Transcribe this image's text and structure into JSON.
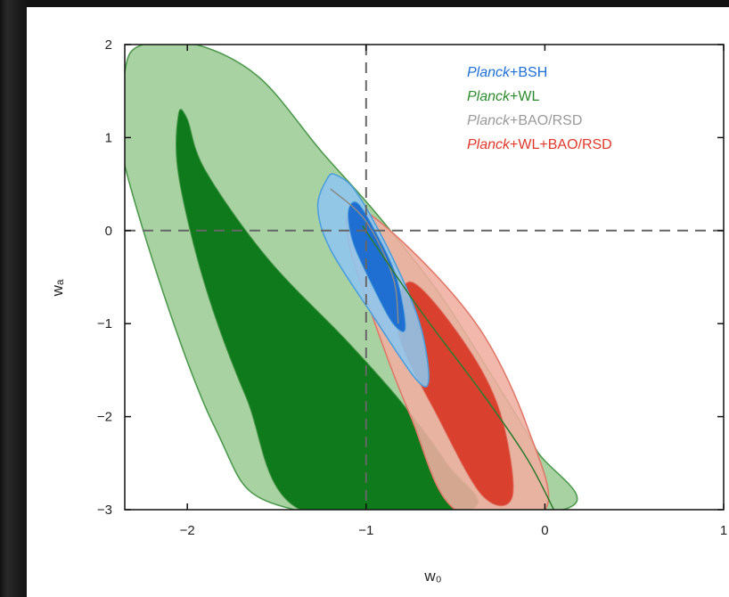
{
  "chart_data": {
    "type": "contour",
    "xlabel": "w₀",
    "ylabel": "wₐ",
    "xlim": [
      -2.35,
      1
    ],
    "ylim": [
      -3,
      2
    ],
    "xticks": [
      {
        "value": -2,
        "label": "−2"
      },
      {
        "value": -1,
        "label": "−1"
      },
      {
        "value": 0,
        "label": "0"
      },
      {
        "value": 1,
        "label": "1"
      }
    ],
    "yticks": [
      {
        "value": 2,
        "label": "2"
      },
      {
        "value": 1,
        "label": "1"
      },
      {
        "value": 0,
        "label": "0"
      },
      {
        "value": -1,
        "label": "−1"
      },
      {
        "value": -2,
        "label": "−2"
      },
      {
        "value": -3,
        "label": "−3"
      }
    ],
    "reference_lines": {
      "x": -1,
      "y": 0
    },
    "legend": {
      "placement": "top-right",
      "entries": [
        {
          "prefix": "Planck",
          "suffix": "+BSH",
          "color": "#1f6fd6"
        },
        {
          "prefix": "Planck",
          "suffix": "+WL",
          "color": "#2e8b2e"
        },
        {
          "prefix": "Planck",
          "suffix": "+BAO/RSD",
          "color": "#9a9a9a"
        },
        {
          "prefix": "Planck",
          "suffix": "+WL+BAO/RSD",
          "color": "#e0382b"
        }
      ]
    },
    "series": [
      {
        "name": "Planck+WL",
        "outer_color": "#9dcc96",
        "inner_color": "#0f7a1c",
        "edge_color": "#4e9a4e",
        "outer": [
          [
            -2.35,
            1.7
          ],
          [
            -2.25,
            2.0
          ],
          [
            -1.95,
            2.0
          ],
          [
            -1.6,
            1.65
          ],
          [
            -1.25,
            0.85
          ],
          [
            -0.95,
            0.2
          ],
          [
            -0.6,
            -0.65
          ],
          [
            -0.3,
            -1.55
          ],
          [
            -0.05,
            -2.35
          ],
          [
            0.1,
            -3.0
          ],
          [
            -1.4,
            -3.0
          ],
          [
            -1.85,
            -2.1
          ],
          [
            -2.35,
            0.7
          ]
        ],
        "inner": [
          [
            -2.05,
            1.25
          ],
          [
            -2.0,
            1.2
          ],
          [
            -1.9,
            0.65
          ],
          [
            -1.55,
            -0.3
          ],
          [
            -1.1,
            -1.2
          ],
          [
            -0.8,
            -1.85
          ],
          [
            -0.55,
            -2.5
          ],
          [
            -0.42,
            -3.0
          ],
          [
            -1.37,
            -3.0
          ],
          [
            -1.67,
            -1.8
          ],
          [
            -1.9,
            -0.6
          ],
          [
            -2.05,
            0.6
          ]
        ]
      },
      {
        "name": "Planck+WL+BAO/RSD",
        "outer_color": "#f0aea0",
        "inner_color": "#d9412e",
        "edge_color": "#e07a6a",
        "outer": [
          [
            -1.05,
            0.25
          ],
          [
            -0.7,
            -0.3
          ],
          [
            -0.35,
            -1.1
          ],
          [
            -0.1,
            -2.1
          ],
          [
            0.0,
            -3.0
          ],
          [
            -0.5,
            -3.0
          ],
          [
            -0.75,
            -2.0
          ],
          [
            -0.95,
            -1.0
          ],
          [
            -1.1,
            -0.1
          ]
        ],
        "inner": [
          [
            -0.75,
            -0.55
          ],
          [
            -0.45,
            -1.2
          ],
          [
            -0.25,
            -1.95
          ],
          [
            -0.18,
            -2.85
          ],
          [
            -0.35,
            -2.85
          ],
          [
            -0.6,
            -2.0
          ],
          [
            -0.82,
            -1.1
          ]
        ]
      },
      {
        "name": "Planck+BSH",
        "outer_color": "#8ec6ee",
        "inner_color": "#1e6fd1",
        "edge_color": "#4f9fdc",
        "outer": [
          [
            -1.17,
            0.6
          ],
          [
            -1.05,
            0.4
          ],
          [
            -0.85,
            -0.3
          ],
          [
            -0.7,
            -1.0
          ],
          [
            -0.65,
            -1.6
          ],
          [
            -0.72,
            -1.6
          ],
          [
            -0.95,
            -0.95
          ],
          [
            -1.2,
            -0.2
          ],
          [
            -1.27,
            0.25
          ],
          [
            -1.22,
            0.55
          ]
        ],
        "inner": [
          [
            -1.05,
            0.3
          ],
          [
            -0.95,
            0.0
          ],
          [
            -0.83,
            -0.5
          ],
          [
            -0.78,
            -1.05
          ],
          [
            -0.85,
            -1.0
          ],
          [
            -0.95,
            -0.65
          ],
          [
            -1.07,
            -0.15
          ],
          [
            -1.1,
            0.2
          ]
        ]
      }
    ],
    "guide_lines": [
      {
        "name": "Planck+BAO/RSD",
        "color": "#8a8a8a",
        "points": [
          [
            -1.2,
            0.45
          ],
          [
            -1.0,
            0.1
          ],
          [
            -0.85,
            -0.5
          ],
          [
            -0.82,
            -1.0
          ]
        ]
      },
      {
        "name": "Planck+WL",
        "color": "#2e7a2e",
        "points": [
          [
            -1.02,
            0.05
          ],
          [
            -0.7,
            -0.85
          ],
          [
            -0.35,
            -1.75
          ],
          [
            -0.1,
            -2.45
          ],
          [
            0.05,
            -3.0
          ]
        ]
      }
    ]
  }
}
